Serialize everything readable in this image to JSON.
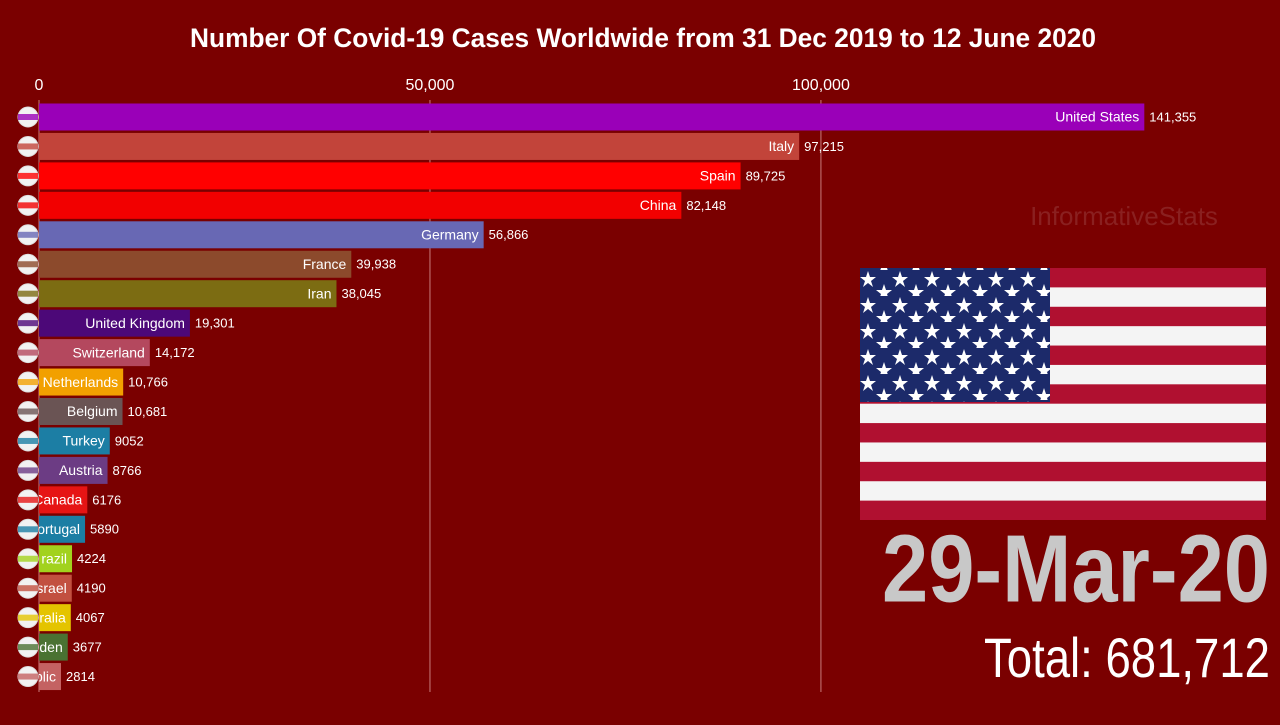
{
  "chart_data": {
    "type": "bar",
    "orientation": "horizontal",
    "title": "Number Of Covid-19 Cases Worldwide from 31 Dec 2019 to 12 June 2020",
    "categories": [
      "United States",
      "Italy",
      "Spain",
      "China",
      "Germany",
      "France",
      "Iran",
      "United Kingdom",
      "Switzerland",
      "Netherlands",
      "Belgium",
      "Turkey",
      "Austria",
      "Canada",
      "ortugal",
      "razil",
      "srael",
      "ralia",
      "eden",
      "blic"
    ],
    "values": [
      141355,
      97215,
      89725,
      82148,
      56866,
      39938,
      38045,
      19301,
      14172,
      10766,
      10681,
      9052,
      8766,
      6176,
      5890,
      4224,
      4190,
      4067,
      3677,
      2814
    ],
    "value_labels": [
      "141,355",
      "97,215",
      "89,725",
      "82,148",
      "56,866",
      "39,938",
      "38,045",
      "19,301",
      "14,172",
      "10,766",
      "10,681",
      "9052",
      "8766",
      "6176",
      "5890",
      "4224",
      "4190",
      "4067",
      "3677",
      "2814"
    ],
    "colors": [
      "#9a00b8",
      "#c2443a",
      "#ff0000",
      "#f20000",
      "#6868b4",
      "#8c4a2c",
      "#7c6c12",
      "#4c0878",
      "#b4485e",
      "#f2a000",
      "#6a5454",
      "#1c7ea4",
      "#6c3c84",
      "#e61414",
      "#1c7ea4",
      "#a2d21e",
      "#c25040",
      "#e4c400",
      "#4a7232",
      "#c46262"
    ],
    "xlim": [
      0,
      155000
    ],
    "xticks": [
      0,
      {
        "value": 50000,
        "label": "50,000"
      },
      {
        "value": 100000,
        "label": "100,000"
      }
    ],
    "grid": true,
    "watermark": "InformativeStats",
    "date_label": "29-Mar-20",
    "total_label": "Total: 681,712"
  }
}
